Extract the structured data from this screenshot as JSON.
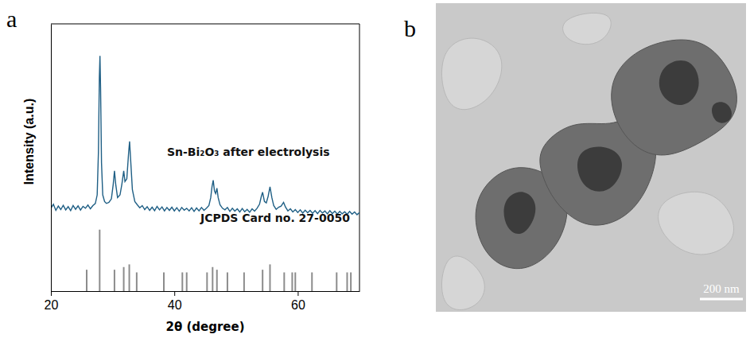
{
  "chart_data": {
    "type": "line",
    "label": "a",
    "x_label": "2θ (degree)",
    "y_label": "Intensity (a.u.)",
    "xlim": [
      20,
      70
    ],
    "xticks": [
      20,
      40,
      60
    ],
    "ylim": [
      0,
      100
    ],
    "tick_labels": "x",
    "series": [
      {
        "name": "Sn-Bi₂O₃ after electrolysis",
        "type": "line",
        "color": "#1f5f85",
        "x": [
          20.0,
          20.4,
          20.8,
          21.2,
          21.6,
          22.0,
          22.4,
          22.8,
          23.2,
          23.6,
          24.0,
          24.4,
          24.8,
          25.2,
          25.6,
          26.0,
          26.4,
          26.8,
          27.2,
          27.5,
          27.7,
          27.85,
          27.95,
          28.05,
          28.2,
          28.4,
          28.7,
          29.0,
          29.4,
          29.8,
          30.1,
          30.3,
          30.5,
          30.8,
          31.2,
          31.5,
          31.8,
          32.0,
          32.3,
          32.6,
          32.75,
          32.9,
          33.2,
          33.6,
          34.0,
          34.4,
          34.8,
          35.2,
          35.6,
          36.0,
          36.4,
          36.8,
          37.2,
          37.6,
          38.0,
          38.4,
          38.8,
          39.2,
          39.6,
          40.0,
          40.4,
          40.8,
          41.2,
          41.6,
          42.0,
          42.4,
          42.8,
          43.2,
          43.6,
          44.0,
          44.4,
          44.8,
          45.2,
          45.6,
          45.9,
          46.1,
          46.3,
          46.5,
          46.7,
          46.9,
          47.1,
          47.4,
          47.8,
          48.2,
          48.6,
          49.0,
          49.4,
          49.8,
          50.2,
          50.6,
          51.0,
          51.4,
          51.8,
          52.2,
          52.6,
          53.0,
          53.4,
          53.8,
          54.1,
          54.3,
          54.6,
          54.9,
          55.2,
          55.5,
          55.8,
          56.1,
          56.5,
          56.9,
          57.3,
          57.7,
          58.0,
          58.4,
          58.8,
          59.2,
          59.6,
          60.0,
          60.4,
          60.8,
          61.2,
          61.6,
          62.0,
          62.4,
          62.8,
          63.2,
          63.6,
          64.0,
          64.4,
          64.8,
          65.2,
          65.6,
          66.0,
          66.4,
          66.8,
          67.2,
          67.6,
          68.0,
          68.4,
          68.8,
          69.2,
          69.6,
          70.0
        ],
        "values": [
          31,
          32.5,
          30.2,
          31.8,
          30.5,
          32.1,
          30.4,
          31.6,
          30.1,
          32.0,
          30.6,
          31.9,
          30.3,
          31.7,
          31.0,
          32.2,
          30.8,
          32.0,
          32.8,
          36,
          52,
          80,
          88,
          76,
          48,
          36,
          33.5,
          32.8,
          33.2,
          34.5,
          40,
          45,
          40,
          35,
          36,
          40,
          45,
          41,
          42,
          52,
          56,
          50,
          38,
          33.5,
          32.3,
          31.2,
          32.0,
          30.5,
          31.6,
          30.2,
          31.4,
          30.1,
          31.7,
          30.4,
          31.5,
          30.0,
          31.3,
          30.2,
          31.4,
          30.0,
          31.2,
          29.9,
          31.3,
          30.3,
          31.0,
          30.0,
          31.2,
          29.8,
          31.1,
          30.0,
          31.3,
          30.2,
          31.0,
          32.0,
          35,
          39,
          41.5,
          37.5,
          36.5,
          38.5,
          35,
          32.3,
          31.0,
          30.4,
          31.3,
          29.8,
          31.0,
          29.9,
          30.8,
          29.6,
          30.9,
          29.7,
          30.6,
          29.5,
          30.8,
          29.9,
          31.0,
          32.5,
          35.5,
          37,
          33.5,
          33,
          35.5,
          39,
          35,
          32,
          30.6,
          31.4,
          31.8,
          33.2,
          31.5,
          30.0,
          30.8,
          29.6,
          30.5,
          29.4,
          30.4,
          29.2,
          30.3,
          29.3,
          30.2,
          29.1,
          30.1,
          29.0,
          30.2,
          29.2,
          30.0,
          28.9,
          30.1,
          29.0,
          29.9,
          28.8,
          29.8,
          28.9,
          29.7,
          28.7,
          29.8,
          28.8,
          29.6,
          28.6,
          29.4
        ]
      },
      {
        "name": "JCPDS Card no. 27-0050",
        "type": "stem",
        "color": "#8c8c8c",
        "x": [
          25.8,
          27.9,
          30.3,
          31.8,
          32.7,
          33.9,
          38.3,
          41.3,
          42.0,
          45.3,
          46.2,
          46.9,
          48.6,
          51.3,
          54.3,
          55.5,
          57.8,
          59.1,
          59.6,
          62.3,
          66.3,
          68.0,
          68.6
        ],
        "values": [
          8,
          23,
          8,
          9,
          10,
          7,
          7,
          7,
          7,
          7,
          9,
          8,
          7,
          7,
          8,
          10,
          7,
          7,
          7,
          7,
          7,
          7,
          7
        ]
      }
    ]
  },
  "image": {
    "label": "b",
    "scale_bar": "200 nm"
  }
}
